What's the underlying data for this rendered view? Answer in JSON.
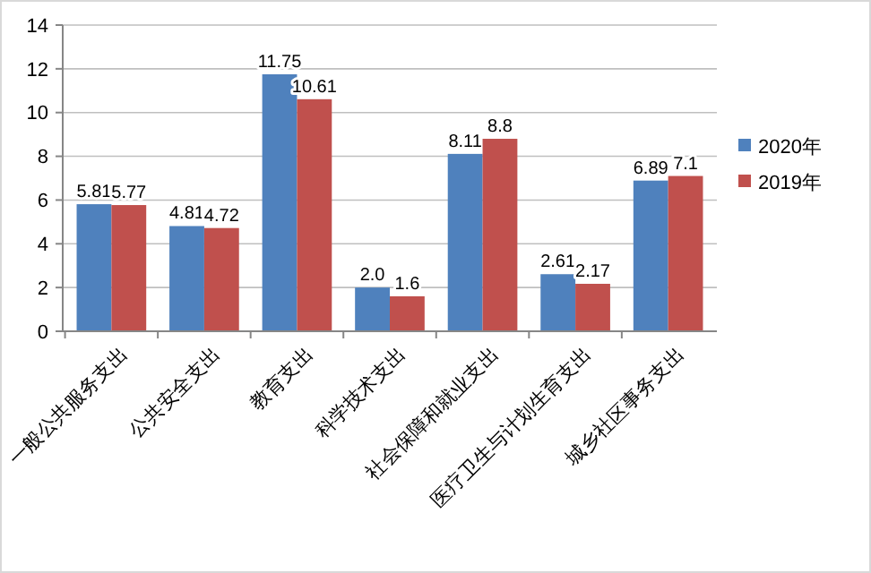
{
  "chart_data": {
    "type": "bar",
    "categories": [
      "一般公共服务支出",
      "公共安全支出",
      "教育支出",
      "科学技术支出",
      "社会保障和就业支出",
      "医疗卫生与计划生育支出",
      "城乡社区事务支出"
    ],
    "series": [
      {
        "name": "2020年",
        "color": "#4f81bd",
        "values": [
          5.81,
          4.81,
          11.75,
          2.0,
          8.11,
          2.61,
          6.89
        ],
        "value_labels": [
          "5.81",
          "4.81",
          "11.75",
          "2.0",
          "8.11",
          "2.61",
          "6.89"
        ]
      },
      {
        "name": "2019年",
        "color": "#c0504d",
        "values": [
          5.77,
          4.72,
          10.61,
          1.6,
          8.8,
          2.17,
          7.1
        ],
        "value_labels": [
          "5.77",
          "4.72",
          "10.61",
          "1.6",
          "8.8",
          "2.17",
          "7.1"
        ]
      }
    ],
    "ylim": [
      0,
      14
    ],
    "yticks": [
      0,
      2,
      4,
      6,
      8,
      10,
      12,
      14
    ],
    "grid": "y",
    "legend": "right"
  }
}
